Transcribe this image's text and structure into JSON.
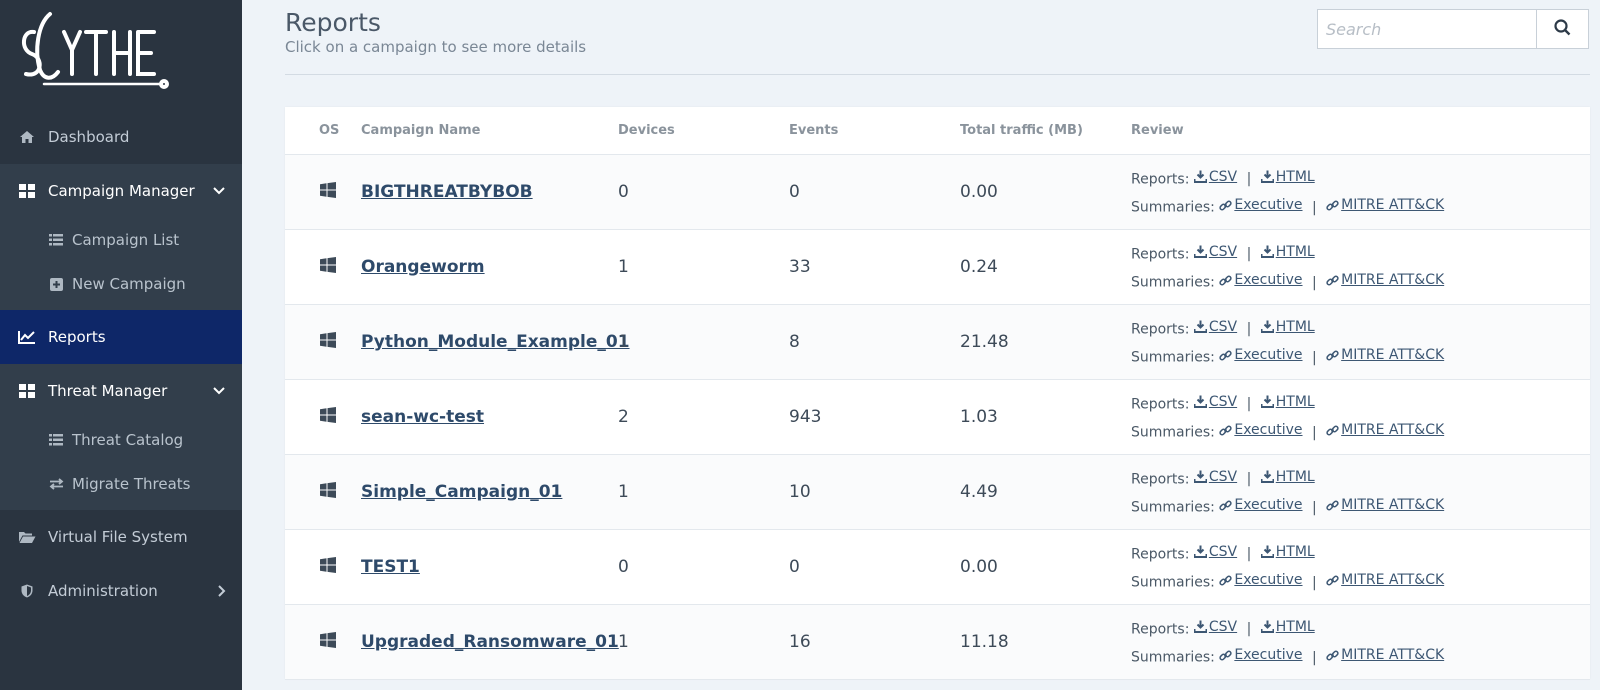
{
  "app": {
    "logo_text": "SCYTHE"
  },
  "sidebar": {
    "items": [
      {
        "label": "Dashboard",
        "icon": "home-icon"
      },
      {
        "label": "Campaign Manager",
        "icon": "grid-icon"
      },
      {
        "label": "Campaign List",
        "icon": "list-icon"
      },
      {
        "label": "New Campaign",
        "icon": "plus-square-icon"
      },
      {
        "label": "Reports",
        "icon": "chart-line-icon"
      },
      {
        "label": "Threat Manager",
        "icon": "grid-icon"
      },
      {
        "label": "Threat Catalog",
        "icon": "list-icon"
      },
      {
        "label": "Migrate Threats",
        "icon": "exchange-icon"
      },
      {
        "label": "Virtual File System",
        "icon": "folder-open-icon"
      },
      {
        "label": "Administration",
        "icon": "shield-icon"
      }
    ]
  },
  "header": {
    "title": "Reports",
    "subtitle": "Click on a campaign to see more details"
  },
  "search": {
    "placeholder": "Search"
  },
  "table": {
    "columns": [
      "OS",
      "Campaign Name",
      "Devices",
      "Events",
      "Total traffic (MB)",
      "Review"
    ],
    "review": {
      "reports_label": "Reports:",
      "summaries_label": "Summaries:",
      "csv": " CSV",
      "html": " HTML",
      "executive": " Executive",
      "mitre": " MITRE ATT&CK",
      "sep": "|"
    },
    "rows": [
      {
        "name": "BIGTHREATBYBOB",
        "devices": "0",
        "events": "0",
        "traffic": "0.00"
      },
      {
        "name": "Orangeworm",
        "devices": "1",
        "events": "33",
        "traffic": "0.24"
      },
      {
        "name": "Python_Module_Example_01",
        "devices": "1",
        "events": "8",
        "traffic": "21.48"
      },
      {
        "name": "sean-wc-test",
        "devices": "2",
        "events": "943",
        "traffic": "1.03"
      },
      {
        "name": "Simple_Campaign_01",
        "devices": "1",
        "events": "10",
        "traffic": "4.49"
      },
      {
        "name": "TEST1",
        "devices": "0",
        "events": "0",
        "traffic": "0.00"
      },
      {
        "name": "Upgraded_Ransomware_01",
        "devices": "1",
        "events": "16",
        "traffic": "11.18"
      }
    ]
  },
  "colors": {
    "sidebar_bg": "#2a3440",
    "active_bg": "#0e2768",
    "page_bg": "#eef3f8"
  }
}
